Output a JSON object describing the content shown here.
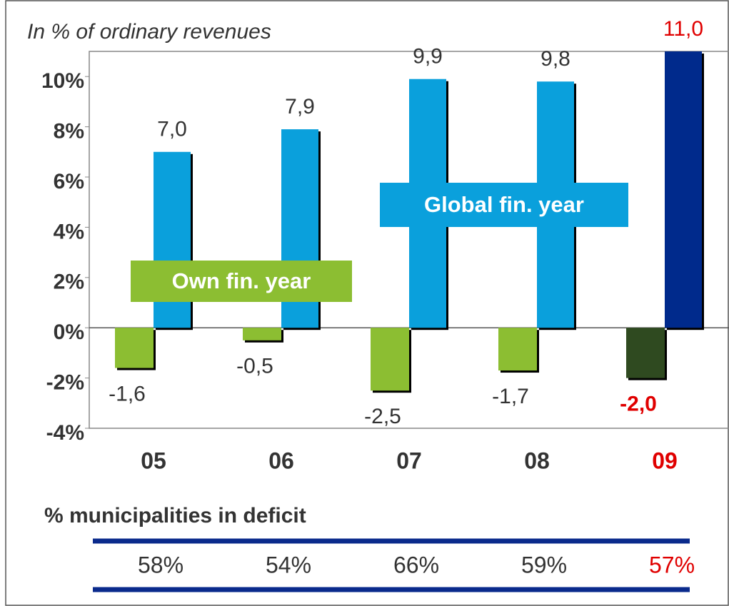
{
  "chart_data": {
    "type": "bar",
    "subtitle": "In % of ordinary revenues",
    "categories": [
      "05",
      "06",
      "07",
      "08",
      "09"
    ],
    "category_colors": [
      "#333333",
      "#333333",
      "#333333",
      "#333333",
      "#e00000"
    ],
    "series": [
      {
        "name": "Own fin. year",
        "color": "#8cbe32",
        "point_colors": [
          "#8cbe32",
          "#8cbe32",
          "#8cbe32",
          "#8cbe32",
          "#2f4a20"
        ],
        "label_colors": [
          "#333333",
          "#333333",
          "#333333",
          "#333333",
          "#e00000"
        ],
        "values": [
          -1.6,
          -0.5,
          -2.5,
          -1.7,
          -2.0
        ],
        "value_labels": [
          "-1,6",
          "-0,5",
          "-2,5",
          "-1,7",
          "-2,0"
        ]
      },
      {
        "name": "Global fin. year",
        "color": "#0aa0dc",
        "point_colors": [
          "#0aa0dc",
          "#0aa0dc",
          "#0aa0dc",
          "#0aa0dc",
          "#002a8c"
        ],
        "label_colors": [
          "#333333",
          "#333333",
          "#333333",
          "#333333",
          "#e00000"
        ],
        "values": [
          7.0,
          7.9,
          9.9,
          9.8,
          11.0
        ],
        "value_labels": [
          "7,0",
          "7,9",
          "9,9",
          "9,8",
          "11,0"
        ]
      }
    ],
    "ylim": [
      -4,
      11
    ],
    "yticks": [
      {
        "value": -4,
        "label": "-4%"
      },
      {
        "value": -2,
        "label": "-2%"
      },
      {
        "value": 0,
        "label": "0%"
      },
      {
        "value": 2,
        "label": "2%"
      },
      {
        "value": 4,
        "label": "4%"
      },
      {
        "value": 6,
        "label": "6%"
      },
      {
        "value": 8,
        "label": "8%"
      },
      {
        "value": 10,
        "label": "10%"
      }
    ],
    "deficit": {
      "title": "% municipalities in deficit",
      "values": [
        58,
        54,
        66,
        59,
        57
      ],
      "value_labels": [
        "58%",
        "54%",
        "66%",
        "59%",
        "57%"
      ],
      "colors": [
        "#333333",
        "#333333",
        "#333333",
        "#333333",
        "#e00000"
      ]
    }
  }
}
